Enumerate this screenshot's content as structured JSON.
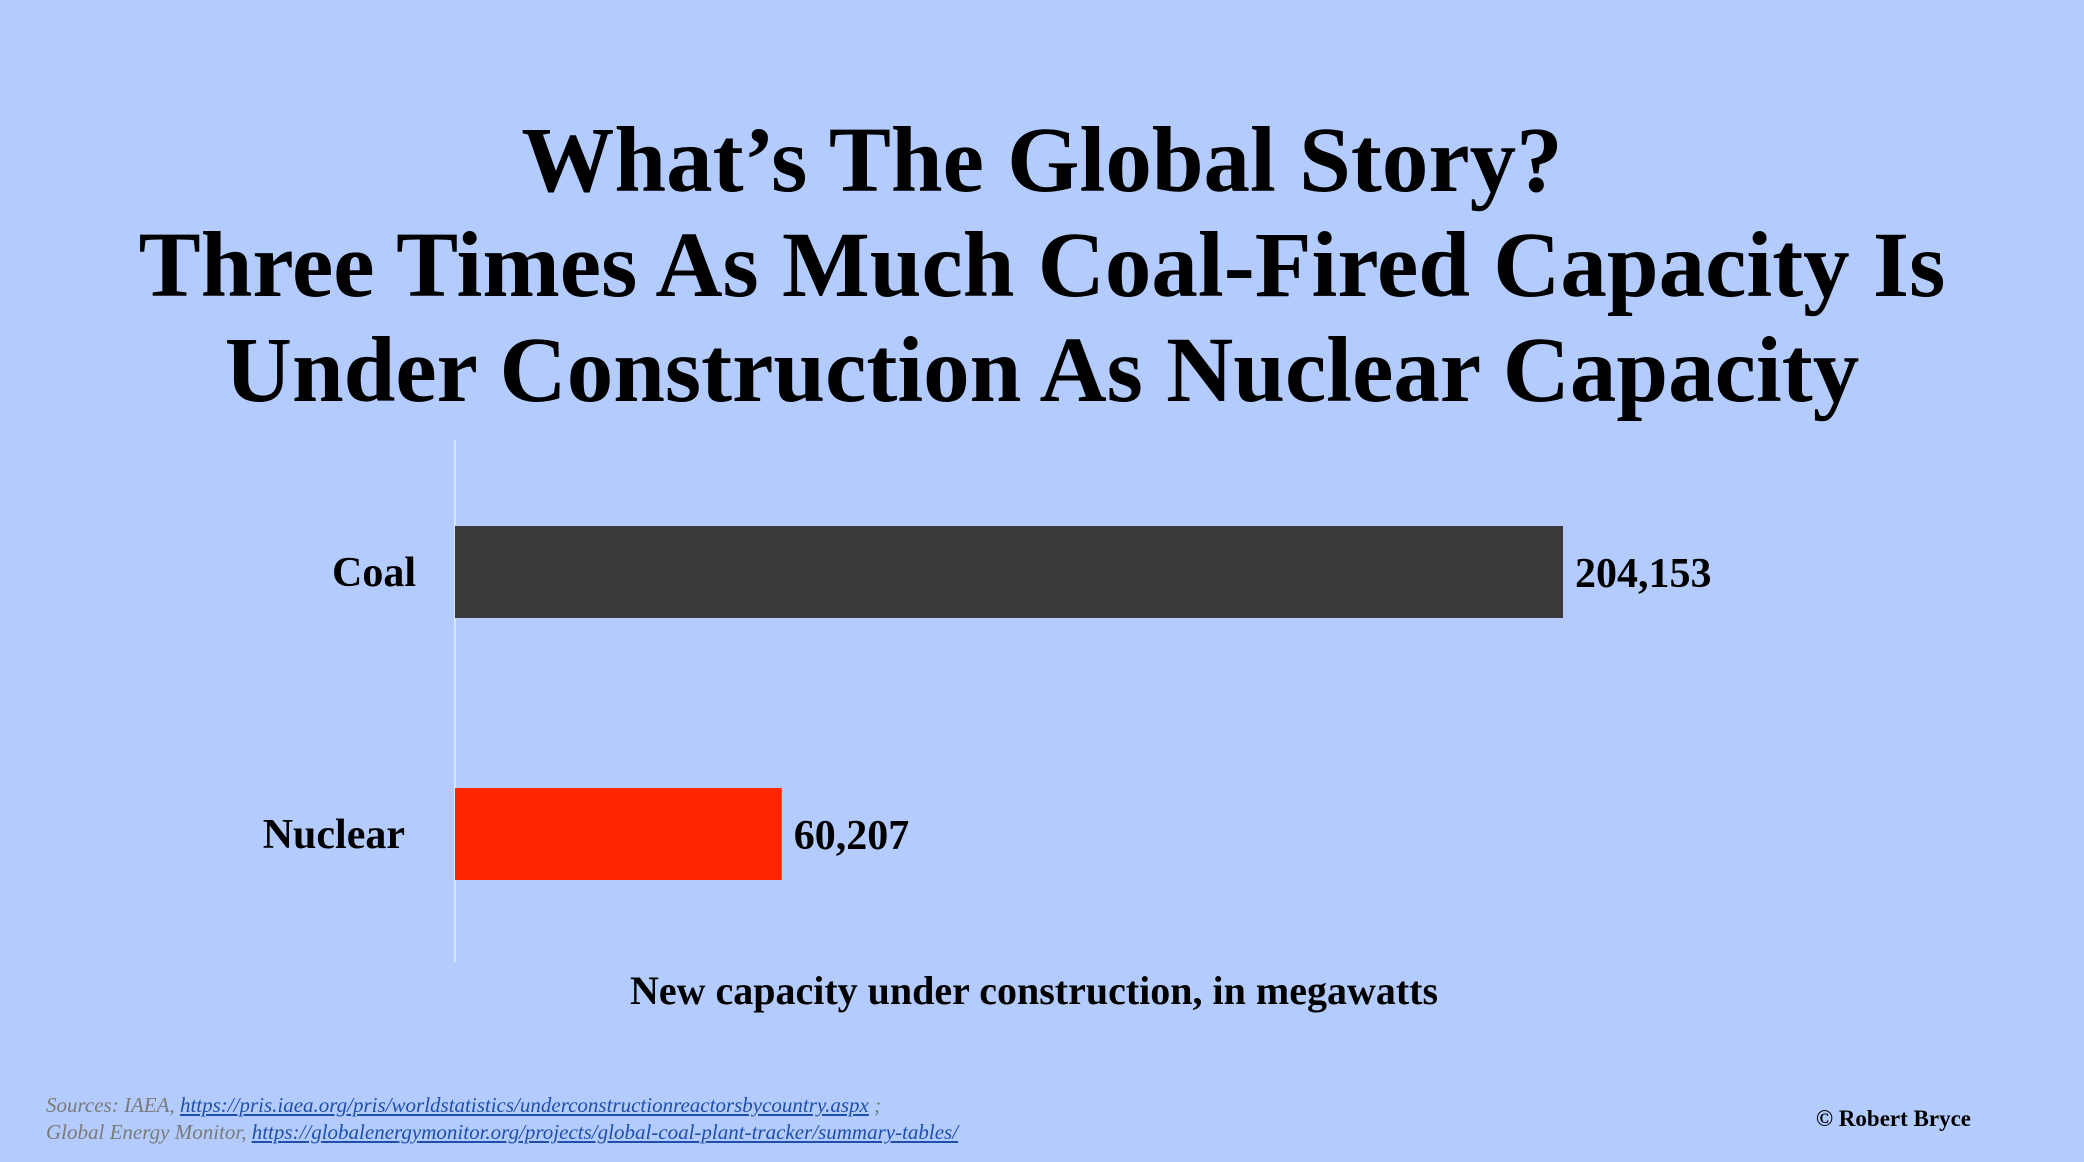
{
  "title": {
    "line1": "What’s The Global Story?",
    "line2": "Three Times As Much Coal-Fired Capacity Is",
    "line3": "Under Construction As Nuclear Capacity"
  },
  "chart_data": {
    "type": "bar",
    "orientation": "horizontal",
    "categories": [
      "Coal",
      "Nuclear"
    ],
    "values": [
      204153,
      60207
    ],
    "value_labels": [
      "204,153",
      "60,207"
    ],
    "colors": [
      "#3a393b",
      "#ff2600"
    ],
    "xlabel": "New capacity under construction, in megawatts",
    "ylabel": "",
    "xlim": [
      0,
      204153
    ],
    "grid": false,
    "legend": "none"
  },
  "sources": {
    "line1_prefix": "Sources: IAEA,",
    "line1_link": "https://pris.iaea.org/pris/worldstatistics/underconstructionreactorsbycountry.aspx",
    "line1_suffix": ";",
    "line2_prefix": "Global Energy Monitor,",
    "line2_link": "https://globalenergymonitor.org/projects/global-coal-plant-tracker/summary-tables/"
  },
  "copyright": "© Robert Bryce"
}
